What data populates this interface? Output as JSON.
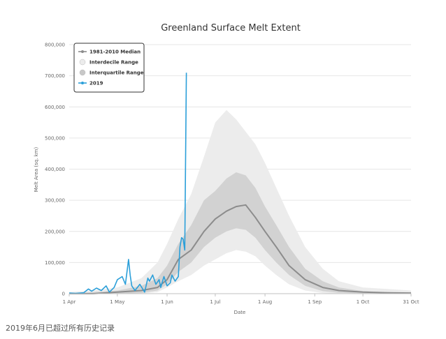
{
  "chart_data": {
    "type": "line",
    "title": "Greenland Surface Melt Extent",
    "xlabel": "Date",
    "ylabel": "Melt Area (sq. km)",
    "x_range": [
      "1 Apr",
      "31 Oct"
    ],
    "xticks": [
      "1 Apr",
      "1 May",
      "1 Jun",
      "1 Jul",
      "1 Aug",
      "1 Sep",
      "1 Oct",
      "31 Oct"
    ],
    "xtick_days": [
      0,
      30,
      61,
      91,
      122,
      153,
      183,
      213
    ],
    "ylim": [
      0,
      800000
    ],
    "yticks": [
      "0",
      "100,000",
      "200,000",
      "300,000",
      "400,000",
      "500,000",
      "600,000",
      "700,000",
      "800,000"
    ],
    "grid": true,
    "legend_position": "top-left",
    "legend": [
      {
        "name": "1981-2010 Median",
        "marker": "line-circle",
        "color": "#8c8c8c"
      },
      {
        "name": "Interdecile Range",
        "marker": "circle",
        "color": "#ececec"
      },
      {
        "name": "Interquartile Range",
        "marker": "circle",
        "color": "#c8c8c8"
      },
      {
        "name": "2019",
        "marker": "line-circle",
        "color": "#2b9fd9"
      }
    ],
    "colors": {
      "median": "#8c8c8c",
      "interdecile": "#ececec",
      "interquartile": "#d2d2d2",
      "series_2019": "#2b9fd9"
    },
    "series": [
      {
        "name": "1981-2010 Median",
        "x": [
          "2019-04-01",
          "2019-04-16",
          "2019-05-01",
          "2019-05-16",
          "2019-05-26",
          "2019-06-01",
          "2019-06-08",
          "2019-06-16",
          "2019-06-24",
          "2019-07-01",
          "2019-07-08",
          "2019-07-14",
          "2019-07-20",
          "2019-07-26",
          "2019-08-01",
          "2019-08-08",
          "2019-08-16",
          "2019-08-26",
          "2019-09-06",
          "2019-09-16",
          "2019-10-01",
          "2019-10-16",
          "2019-10-31"
        ],
        "y": [
          0,
          0,
          5000,
          10000,
          20000,
          45000,
          110000,
          140000,
          200000,
          240000,
          265000,
          280000,
          285000,
          245000,
          200000,
          150000,
          90000,
          45000,
          20000,
          10000,
          5000,
          3000,
          2000
        ]
      },
      {
        "name": "Interdecile Range",
        "x": [
          "2019-04-01",
          "2019-04-16",
          "2019-05-01",
          "2019-05-16",
          "2019-05-26",
          "2019-06-01",
          "2019-06-08",
          "2019-06-16",
          "2019-06-24",
          "2019-07-01",
          "2019-07-08",
          "2019-07-14",
          "2019-07-20",
          "2019-07-26",
          "2019-08-01",
          "2019-08-08",
          "2019-08-16",
          "2019-08-26",
          "2019-09-06",
          "2019-09-16",
          "2019-10-01",
          "2019-10-16",
          "2019-10-31"
        ],
        "low": [
          0,
          0,
          0,
          0,
          5000,
          20000,
          40000,
          60000,
          90000,
          110000,
          130000,
          140000,
          135000,
          120000,
          90000,
          60000,
          30000,
          10000,
          2000,
          0,
          0,
          0,
          0
        ],
        "high": [
          5000,
          10000,
          20000,
          50000,
          100000,
          160000,
          240000,
          320000,
          440000,
          550000,
          590000,
          560000,
          520000,
          480000,
          420000,
          340000,
          250000,
          150000,
          80000,
          40000,
          20000,
          15000,
          10000
        ]
      },
      {
        "name": "Interquartile Range",
        "x": [
          "2019-04-01",
          "2019-04-16",
          "2019-05-01",
          "2019-05-16",
          "2019-05-26",
          "2019-06-01",
          "2019-06-08",
          "2019-06-16",
          "2019-06-24",
          "2019-07-01",
          "2019-07-08",
          "2019-07-14",
          "2019-07-20",
          "2019-07-26",
          "2019-08-01",
          "2019-08-08",
          "2019-08-16",
          "2019-08-26",
          "2019-09-06",
          "2019-09-16",
          "2019-10-01",
          "2019-10-16",
          "2019-10-31"
        ],
        "low": [
          0,
          0,
          0,
          2000,
          10000,
          30000,
          70000,
          100000,
          150000,
          180000,
          200000,
          210000,
          205000,
          180000,
          140000,
          100000,
          60000,
          25000,
          8000,
          3000,
          1000,
          0,
          0
        ],
        "high": [
          2000,
          5000,
          10000,
          25000,
          50000,
          90000,
          160000,
          220000,
          300000,
          330000,
          370000,
          390000,
          380000,
          340000,
          280000,
          220000,
          150000,
          80000,
          40000,
          20000,
          8000,
          5000,
          3000
        ]
      },
      {
        "name": "2019",
        "x": [
          "2019-04-01",
          "2019-04-05",
          "2019-04-10",
          "2019-04-13",
          "2019-04-15",
          "2019-04-18",
          "2019-04-21",
          "2019-04-24",
          "2019-04-26",
          "2019-04-29",
          "2019-05-01",
          "2019-05-04",
          "2019-05-06",
          "2019-05-08",
          "2019-05-09",
          "2019-05-10",
          "2019-05-12",
          "2019-05-15",
          "2019-05-18",
          "2019-05-20",
          "2019-05-21",
          "2019-05-23",
          "2019-05-25",
          "2019-05-27",
          "2019-05-28",
          "2019-05-30",
          "2019-06-01",
          "2019-06-03",
          "2019-06-04",
          "2019-06-06",
          "2019-06-08",
          "2019-06-09",
          "2019-06-10",
          "2019-06-11",
          "2019-06-12",
          "2019-06-13"
        ],
        "y": [
          2000,
          1000,
          3000,
          15000,
          8000,
          18000,
          10000,
          25000,
          5000,
          20000,
          45000,
          55000,
          30000,
          110000,
          60000,
          25000,
          10000,
          30000,
          5000,
          50000,
          40000,
          60000,
          30000,
          45000,
          20000,
          55000,
          25000,
          35000,
          60000,
          40000,
          55000,
          150000,
          180000,
          175000,
          140000,
          710000
        ]
      }
    ]
  },
  "caption": "2019年6月已超过所有历史记录"
}
